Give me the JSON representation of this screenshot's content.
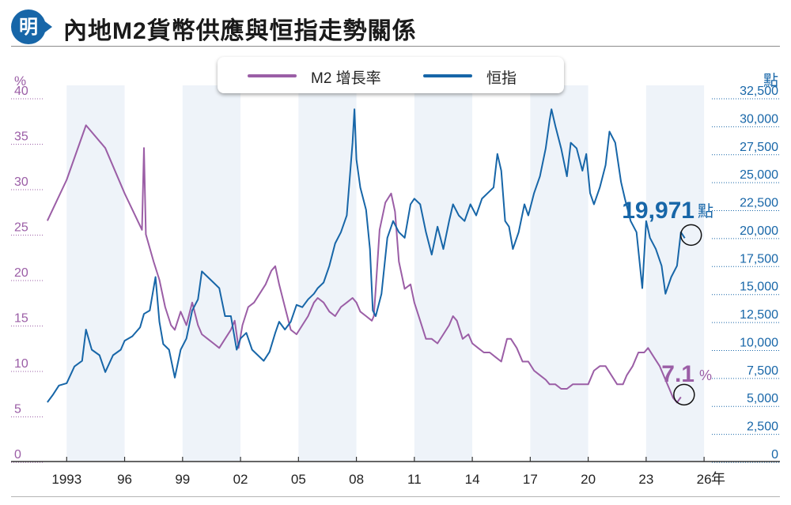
{
  "header": {
    "logo_char": "明",
    "title": "內地M2貨幣供應與恒指走勢關係"
  },
  "legend": [
    {
      "label": "M2 增長率",
      "color": "#9b5ea6"
    },
    {
      "label": "恒指",
      "color": "#1766a8"
    }
  ],
  "chart_data": {
    "type": "line",
    "x_ticks": [
      "1993",
      "96",
      "99",
      "02",
      "05",
      "08",
      "11",
      "14",
      "17",
      "20",
      "23",
      "26"
    ],
    "x_unit": "年",
    "xlim": [
      1991.8,
      2026.2
    ],
    "left_axis": {
      "unit": "%",
      "ticks": [
        "0",
        "5",
        "10",
        "15",
        "20",
        "25",
        "30",
        "35",
        "40"
      ],
      "ylim": [
        0,
        40
      ]
    },
    "right_axis": {
      "unit": "點",
      "ticks": [
        "0",
        "2,500",
        "5,000",
        "7,500",
        "10,000",
        "12,500",
        "15,000",
        "17,500",
        "20,000",
        "22,500",
        "25,000",
        "27,500",
        "30,000",
        "32,500"
      ],
      "ylim": [
        0,
        32500
      ]
    },
    "shaded_bands": [
      [
        1993,
        1996
      ],
      [
        1999,
        2002
      ],
      [
        2005,
        2008
      ],
      [
        2011,
        2014
      ],
      [
        2017,
        2020
      ],
      [
        2023,
        2026
      ]
    ],
    "series": [
      {
        "name": "M2 增長率",
        "axis": "left",
        "color": "#9b5ea6",
        "points": [
          [
            1992.0,
            26.5
          ],
          [
            1993.0,
            31.0
          ],
          [
            1994.0,
            37.0
          ],
          [
            1995.0,
            34.5
          ],
          [
            1996.0,
            29.5
          ],
          [
            1996.9,
            25.5
          ],
          [
            1997.0,
            34.5
          ],
          [
            1997.1,
            25.0
          ],
          [
            1997.5,
            22.0
          ],
          [
            1997.8,
            20.0
          ],
          [
            1998.1,
            17.0
          ],
          [
            1998.4,
            15.0
          ],
          [
            1998.6,
            14.5
          ],
          [
            1998.9,
            16.5
          ],
          [
            1999.2,
            15.0
          ],
          [
            1999.5,
            17.5
          ],
          [
            1999.8,
            15.0
          ],
          [
            2000.0,
            14.0
          ],
          [
            2000.3,
            13.5
          ],
          [
            2000.6,
            13.0
          ],
          [
            2000.9,
            12.5
          ],
          [
            2001.2,
            13.5
          ],
          [
            2001.5,
            14.5
          ],
          [
            2001.7,
            15.5
          ],
          [
            2001.9,
            12.5
          ],
          [
            2002.1,
            15.0
          ],
          [
            2002.4,
            17.0
          ],
          [
            2002.7,
            17.5
          ],
          [
            2003.0,
            18.5
          ],
          [
            2003.3,
            19.5
          ],
          [
            2003.6,
            21.0
          ],
          [
            2003.8,
            21.5
          ],
          [
            2004.0,
            19.5
          ],
          [
            2004.3,
            17.0
          ],
          [
            2004.6,
            14.5
          ],
          [
            2004.9,
            14.0
          ],
          [
            2005.2,
            15.0
          ],
          [
            2005.5,
            16.0
          ],
          [
            2005.8,
            17.5
          ],
          [
            2006.0,
            18.0
          ],
          [
            2006.3,
            17.5
          ],
          [
            2006.6,
            16.5
          ],
          [
            2006.9,
            16.0
          ],
          [
            2007.2,
            17.0
          ],
          [
            2007.5,
            17.5
          ],
          [
            2007.8,
            18.0
          ],
          [
            2008.0,
            17.5
          ],
          [
            2008.2,
            16.5
          ],
          [
            2008.5,
            16.0
          ],
          [
            2008.8,
            15.5
          ],
          [
            2008.9,
            16.0
          ],
          [
            2009.0,
            19.0
          ],
          [
            2009.2,
            25.5
          ],
          [
            2009.5,
            28.5
          ],
          [
            2009.8,
            29.5
          ],
          [
            2010.0,
            27.5
          ],
          [
            2010.2,
            22.0
          ],
          [
            2010.5,
            19.0
          ],
          [
            2010.8,
            19.5
          ],
          [
            2011.0,
            17.5
          ],
          [
            2011.3,
            15.5
          ],
          [
            2011.6,
            13.5
          ],
          [
            2011.9,
            13.5
          ],
          [
            2012.2,
            13.0
          ],
          [
            2012.5,
            14.0
          ],
          [
            2012.8,
            15.0
          ],
          [
            2013.0,
            16.0
          ],
          [
            2013.2,
            15.5
          ],
          [
            2013.5,
            13.5
          ],
          [
            2013.8,
            14.0
          ],
          [
            2014.0,
            13.0
          ],
          [
            2014.3,
            12.5
          ],
          [
            2014.6,
            12.0
          ],
          [
            2014.9,
            12.0
          ],
          [
            2015.2,
            11.5
          ],
          [
            2015.5,
            11.0
          ],
          [
            2015.8,
            13.5
          ],
          [
            2016.0,
            13.5
          ],
          [
            2016.3,
            12.5
          ],
          [
            2016.6,
            11.0
          ],
          [
            2016.9,
            11.0
          ],
          [
            2017.2,
            10.0
          ],
          [
            2017.5,
            9.5
          ],
          [
            2017.8,
            9.0
          ],
          [
            2018.0,
            8.5
          ],
          [
            2018.3,
            8.5
          ],
          [
            2018.6,
            8.0
          ],
          [
            2018.9,
            8.0
          ],
          [
            2019.2,
            8.5
          ],
          [
            2019.5,
            8.5
          ],
          [
            2019.8,
            8.5
          ],
          [
            2020.0,
            8.5
          ],
          [
            2020.3,
            10.0
          ],
          [
            2020.6,
            10.5
          ],
          [
            2020.9,
            10.5
          ],
          [
            2021.2,
            9.5
          ],
          [
            2021.5,
            8.5
          ],
          [
            2021.8,
            8.5
          ],
          [
            2022.0,
            9.5
          ],
          [
            2022.3,
            10.5
          ],
          [
            2022.6,
            12.0
          ],
          [
            2022.9,
            12.0
          ],
          [
            2023.1,
            12.5
          ],
          [
            2023.4,
            11.5
          ],
          [
            2023.7,
            10.5
          ],
          [
            2024.0,
            9.0
          ],
          [
            2024.2,
            8.0
          ],
          [
            2024.4,
            7.0
          ],
          [
            2024.6,
            6.5
          ],
          [
            2024.8,
            7.1
          ]
        ]
      },
      {
        "name": "恒指",
        "axis": "right",
        "color": "#1766a8",
        "points": [
          [
            1992.0,
            5300
          ],
          [
            1992.3,
            6000
          ],
          [
            1992.6,
            6800
          ],
          [
            1993.0,
            7000
          ],
          [
            1993.4,
            8500
          ],
          [
            1993.8,
            9000
          ],
          [
            1994.0,
            11800
          ],
          [
            1994.3,
            10000
          ],
          [
            1994.7,
            9500
          ],
          [
            1995.0,
            8000
          ],
          [
            1995.4,
            9500
          ],
          [
            1995.8,
            10000
          ],
          [
            1996.0,
            10800
          ],
          [
            1996.4,
            11200
          ],
          [
            1996.8,
            12000
          ],
          [
            1997.0,
            13200
          ],
          [
            1997.3,
            13500
          ],
          [
            1997.6,
            16500
          ],
          [
            1997.8,
            12500
          ],
          [
            1998.0,
            10500
          ],
          [
            1998.3,
            10000
          ],
          [
            1998.6,
            7500
          ],
          [
            1998.9,
            10000
          ],
          [
            1999.2,
            11000
          ],
          [
            1999.5,
            13500
          ],
          [
            1999.8,
            14500
          ],
          [
            2000.0,
            17000
          ],
          [
            2000.3,
            16500
          ],
          [
            2000.6,
            16000
          ],
          [
            2000.9,
            15500
          ],
          [
            2001.2,
            13000
          ],
          [
            2001.5,
            13000
          ],
          [
            2001.8,
            10000
          ],
          [
            2002.0,
            11000
          ],
          [
            2002.3,
            11500
          ],
          [
            2002.6,
            10000
          ],
          [
            2002.9,
            9500
          ],
          [
            2003.2,
            9000
          ],
          [
            2003.5,
            9800
          ],
          [
            2003.8,
            11500
          ],
          [
            2004.0,
            12500
          ],
          [
            2004.3,
            11800
          ],
          [
            2004.6,
            12500
          ],
          [
            2004.9,
            14000
          ],
          [
            2005.2,
            13800
          ],
          [
            2005.5,
            14500
          ],
          [
            2005.8,
            15000
          ],
          [
            2006.0,
            15500
          ],
          [
            2006.3,
            16000
          ],
          [
            2006.6,
            17500
          ],
          [
            2006.9,
            19500
          ],
          [
            2007.2,
            20500
          ],
          [
            2007.5,
            22000
          ],
          [
            2007.8,
            28500
          ],
          [
            2007.9,
            31500
          ],
          [
            2008.0,
            27000
          ],
          [
            2008.2,
            24500
          ],
          [
            2008.5,
            22500
          ],
          [
            2008.7,
            19000
          ],
          [
            2008.85,
            13500
          ],
          [
            2009.0,
            13000
          ],
          [
            2009.3,
            15000
          ],
          [
            2009.6,
            20000
          ],
          [
            2009.9,
            21500
          ],
          [
            2010.2,
            20500
          ],
          [
            2010.5,
            20000
          ],
          [
            2010.8,
            23000
          ],
          [
            2011.0,
            23500
          ],
          [
            2011.3,
            23000
          ],
          [
            2011.6,
            20500
          ],
          [
            2011.9,
            18500
          ],
          [
            2012.2,
            21000
          ],
          [
            2012.5,
            19000
          ],
          [
            2012.8,
            21500
          ],
          [
            2013.0,
            23000
          ],
          [
            2013.3,
            22000
          ],
          [
            2013.6,
            21500
          ],
          [
            2013.9,
            23000
          ],
          [
            2014.2,
            22000
          ],
          [
            2014.5,
            23500
          ],
          [
            2014.8,
            24000
          ],
          [
            2015.1,
            24500
          ],
          [
            2015.3,
            27500
          ],
          [
            2015.5,
            26000
          ],
          [
            2015.7,
            21500
          ],
          [
            2015.9,
            21000
          ],
          [
            2016.1,
            19000
          ],
          [
            2016.4,
            20500
          ],
          [
            2016.7,
            23000
          ],
          [
            2016.9,
            22000
          ],
          [
            2017.2,
            24000
          ],
          [
            2017.5,
            25500
          ],
          [
            2017.8,
            28000
          ],
          [
            2018.0,
            30500
          ],
          [
            2018.1,
            31500
          ],
          [
            2018.3,
            30000
          ],
          [
            2018.6,
            28000
          ],
          [
            2018.9,
            25500
          ],
          [
            2019.1,
            28500
          ],
          [
            2019.4,
            28000
          ],
          [
            2019.7,
            26000
          ],
          [
            2019.9,
            27500
          ],
          [
            2020.1,
            24000
          ],
          [
            2020.3,
            23000
          ],
          [
            2020.6,
            24500
          ],
          [
            2020.9,
            26500
          ],
          [
            2021.1,
            29500
          ],
          [
            2021.4,
            28500
          ],
          [
            2021.7,
            25000
          ],
          [
            2021.9,
            23500
          ],
          [
            2022.2,
            21500
          ],
          [
            2022.5,
            20500
          ],
          [
            2022.8,
            15500
          ],
          [
            2023.0,
            21500
          ],
          [
            2023.2,
            20000
          ],
          [
            2023.5,
            19000
          ],
          [
            2023.8,
            17500
          ],
          [
            2024.0,
            15000
          ],
          [
            2024.3,
            16500
          ],
          [
            2024.6,
            17500
          ],
          [
            2024.8,
            20500
          ],
          [
            2025.0,
            19971
          ]
        ]
      }
    ],
    "annotations": [
      {
        "series": "恒指",
        "value": "19,971",
        "unit": "點",
        "at": [
          2025.0,
          19971
        ]
      },
      {
        "series": "M2 增長率",
        "value": "7.1",
        "unit": "%",
        "at": [
          2024.8,
          7.1
        ]
      }
    ]
  }
}
